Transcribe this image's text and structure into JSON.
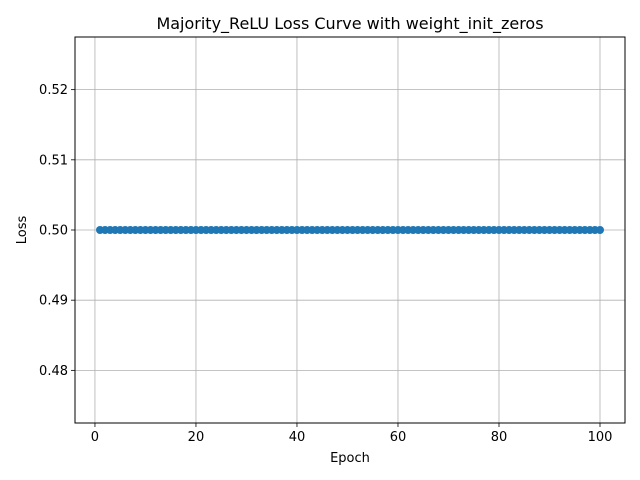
{
  "chart_data": {
    "type": "line",
    "title": "Majority_ReLU Loss Curve with weight_init_zeros",
    "xlabel": "Epoch",
    "ylabel": "Loss",
    "xlim": [
      -3.95,
      104.95
    ],
    "ylim": [
      0.4725,
      0.5275
    ],
    "xticks": [
      0,
      20,
      40,
      60,
      80,
      100
    ],
    "xtick_labels": [
      "0",
      "20",
      "40",
      "60",
      "80",
      "100"
    ],
    "yticks": [
      0.48,
      0.49,
      0.5,
      0.51,
      0.52
    ],
    "ytick_labels": [
      "0.48",
      "0.49",
      "0.50",
      "0.51",
      "0.52"
    ],
    "grid": true,
    "marker": "circle",
    "series": [
      {
        "name": "Loss",
        "color": "#1f77b4",
        "x_start": 1,
        "x_end": 100,
        "x_step": 1,
        "constant_value": 0.5
      }
    ]
  }
}
